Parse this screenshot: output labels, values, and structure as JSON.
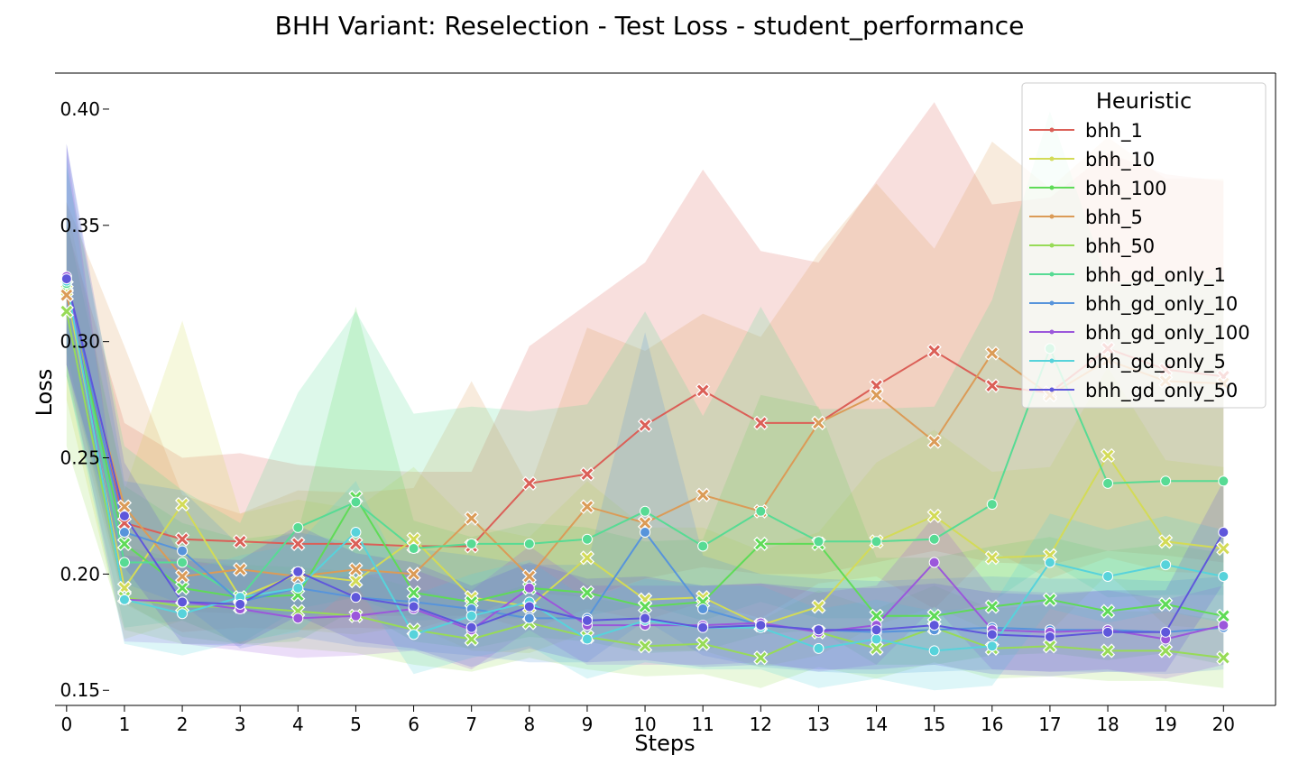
{
  "chart_data": {
    "type": "line",
    "title": "BHH Variant: Reselection - Test Loss - student_performance",
    "xlabel": "Steps",
    "ylabel": "Loss",
    "x": [
      0,
      1,
      2,
      3,
      4,
      5,
      6,
      7,
      8,
      9,
      10,
      11,
      12,
      13,
      14,
      15,
      16,
      17,
      18,
      19,
      20
    ],
    "xlim": [
      -0.2,
      20.9
    ],
    "ylim": [
      0.1435,
      0.4155
    ],
    "yticks": [
      0.15,
      0.2,
      0.25,
      0.3,
      0.35,
      0.4
    ],
    "ytick_labels": [
      "0.15",
      "0.20",
      "0.25",
      "0.30",
      "0.35",
      "0.40"
    ],
    "xtick_labels": [
      "0",
      "1",
      "2",
      "3",
      "4",
      "5",
      "6",
      "7",
      "8",
      "9",
      "10",
      "11",
      "12",
      "13",
      "14",
      "15",
      "16",
      "17",
      "18",
      "19",
      "20"
    ],
    "grid": false,
    "legend": {
      "title": "Heuristic",
      "placement": "top-right"
    },
    "series": [
      {
        "name": "bhh_1",
        "color": "#db5f57",
        "values": [
          0.32,
          0.222,
          0.215,
          0.214,
          0.213,
          0.213,
          0.212,
          0.212,
          0.239,
          0.243,
          0.264,
          0.279,
          0.265,
          0.265,
          0.281,
          0.296,
          0.281,
          0.278,
          0.297,
          0.288,
          0.285
        ],
        "upper": [
          0.35,
          0.265,
          0.25,
          0.252,
          0.247,
          0.245,
          0.244,
          0.244,
          0.298,
          0.316,
          0.334,
          0.374,
          0.339,
          0.334,
          0.369,
          0.403,
          0.359,
          0.362,
          0.381,
          0.372,
          0.369
        ],
        "lower": [
          0.29,
          0.19,
          0.184,
          0.183,
          0.182,
          0.182,
          0.182,
          0.182,
          0.192,
          0.19,
          0.198,
          0.203,
          0.2,
          0.2,
          0.205,
          0.21,
          0.205,
          0.204,
          0.21,
          0.208,
          0.205
        ]
      },
      {
        "name": "bhh_10",
        "color": "#d3db57",
        "values": [
          0.322,
          0.194,
          0.23,
          0.19,
          0.2,
          0.197,
          0.215,
          0.19,
          0.186,
          0.207,
          0.189,
          0.19,
          0.178,
          0.186,
          0.214,
          0.225,
          0.207,
          0.208,
          0.251,
          0.214,
          0.211
        ],
        "upper": [
          0.36,
          0.236,
          0.309,
          0.226,
          0.232,
          0.228,
          0.246,
          0.221,
          0.216,
          0.24,
          0.22,
          0.22,
          0.21,
          0.218,
          0.248,
          0.262,
          0.244,
          0.246,
          0.289,
          0.249,
          0.246
        ],
        "lower": [
          0.275,
          0.172,
          0.18,
          0.17,
          0.176,
          0.174,
          0.178,
          0.167,
          0.166,
          0.175,
          0.167,
          0.167,
          0.16,
          0.165,
          0.178,
          0.186,
          0.175,
          0.175,
          0.2,
          0.178,
          0.176
        ]
      },
      {
        "name": "bhh_100",
        "color": "#5fdb57",
        "values": [
          0.324,
          0.213,
          0.194,
          0.19,
          0.191,
          0.233,
          0.192,
          0.188,
          0.194,
          0.192,
          0.186,
          0.188,
          0.213,
          0.213,
          0.182,
          0.182,
          0.186,
          0.189,
          0.184,
          0.187,
          0.182
        ],
        "upper": [
          0.352,
          0.238,
          0.222,
          0.215,
          0.218,
          0.315,
          0.223,
          0.216,
          0.222,
          0.22,
          0.214,
          0.215,
          0.277,
          0.272,
          0.207,
          0.207,
          0.212,
          0.216,
          0.21,
          0.213,
          0.209
        ],
        "lower": [
          0.295,
          0.188,
          0.173,
          0.17,
          0.171,
          0.185,
          0.171,
          0.168,
          0.173,
          0.171,
          0.166,
          0.167,
          0.174,
          0.176,
          0.161,
          0.161,
          0.165,
          0.166,
          0.163,
          0.166,
          0.161
        ]
      },
      {
        "name": "bhh_5",
        "color": "#db9b57",
        "values": [
          0.32,
          0.229,
          0.199,
          0.202,
          0.199,
          0.202,
          0.2,
          0.224,
          0.199,
          0.229,
          0.222,
          0.234,
          0.227,
          0.265,
          0.277,
          0.257,
          0.295,
          0.277,
          0.292,
          0.283,
          0.282
        ],
        "upper": [
          0.36,
          0.298,
          0.234,
          0.226,
          0.236,
          0.235,
          0.237,
          0.283,
          0.237,
          0.306,
          0.296,
          0.312,
          0.302,
          0.338,
          0.368,
          0.34,
          0.386,
          0.366,
          0.388,
          0.37,
          0.37
        ],
        "lower": [
          0.285,
          0.187,
          0.175,
          0.177,
          0.176,
          0.177,
          0.176,
          0.183,
          0.176,
          0.185,
          0.18,
          0.188,
          0.181,
          0.196,
          0.199,
          0.185,
          0.21,
          0.198,
          0.207,
          0.201,
          0.2
        ]
      },
      {
        "name": "bhh_50",
        "color": "#97db57",
        "values": [
          0.313,
          0.19,
          0.186,
          0.186,
          0.184,
          0.182,
          0.176,
          0.172,
          0.179,
          0.173,
          0.169,
          0.17,
          0.164,
          0.175,
          0.168,
          0.177,
          0.168,
          0.169,
          0.167,
          0.167,
          0.164
        ],
        "upper": [
          0.325,
          0.212,
          0.206,
          0.204,
          0.203,
          0.201,
          0.194,
          0.188,
          0.196,
          0.19,
          0.186,
          0.187,
          0.18,
          0.193,
          0.185,
          0.195,
          0.185,
          0.187,
          0.184,
          0.184,
          0.18
        ],
        "lower": [
          0.255,
          0.176,
          0.17,
          0.17,
          0.168,
          0.166,
          0.161,
          0.158,
          0.164,
          0.159,
          0.156,
          0.157,
          0.151,
          0.16,
          0.155,
          0.162,
          0.155,
          0.156,
          0.154,
          0.154,
          0.151
        ]
      },
      {
        "name": "bhh_gd_only_1",
        "color": "#57db94",
        "values": [
          0.325,
          0.205,
          0.205,
          0.19,
          0.22,
          0.231,
          0.211,
          0.213,
          0.213,
          0.215,
          0.227,
          0.212,
          0.227,
          0.214,
          0.214,
          0.215,
          0.23,
          0.297,
          0.239,
          0.24,
          0.24
        ],
        "upper": [
          0.375,
          0.255,
          0.236,
          0.222,
          0.278,
          0.313,
          0.269,
          0.272,
          0.27,
          0.273,
          0.313,
          0.268,
          0.315,
          0.271,
          0.271,
          0.272,
          0.318,
          0.399,
          0.325,
          0.327,
          0.327
        ],
        "lower": [
          0.285,
          0.177,
          0.18,
          0.17,
          0.185,
          0.19,
          0.18,
          0.181,
          0.181,
          0.182,
          0.187,
          0.18,
          0.188,
          0.181,
          0.181,
          0.182,
          0.188,
          0.205,
          0.19,
          0.191,
          0.191
        ]
      },
      {
        "name": "bhh_gd_only_10",
        "color": "#5794db",
        "values": [
          0.327,
          0.218,
          0.21,
          0.188,
          0.194,
          0.19,
          0.188,
          0.185,
          0.181,
          0.181,
          0.218,
          0.185,
          0.178,
          0.176,
          0.175,
          0.176,
          0.177,
          0.176,
          0.176,
          0.175,
          0.177
        ],
        "upper": [
          0.385,
          0.24,
          0.236,
          0.212,
          0.218,
          0.213,
          0.211,
          0.208,
          0.204,
          0.204,
          0.304,
          0.208,
          0.2,
          0.198,
          0.197,
          0.198,
          0.199,
          0.198,
          0.198,
          0.197,
          0.199
        ],
        "lower": [
          0.29,
          0.196,
          0.187,
          0.168,
          0.173,
          0.169,
          0.167,
          0.165,
          0.162,
          0.162,
          0.18,
          0.165,
          0.16,
          0.158,
          0.157,
          0.158,
          0.159,
          0.158,
          0.158,
          0.157,
          0.159
        ]
      },
      {
        "name": "bhh_gd_only_100",
        "color": "#9b57db",
        "values": [
          0.328,
          0.189,
          0.188,
          0.185,
          0.181,
          0.182,
          0.185,
          0.176,
          0.194,
          0.178,
          0.178,
          0.178,
          0.179,
          0.175,
          0.178,
          0.205,
          0.176,
          0.175,
          0.176,
          0.172,
          0.178
        ],
        "upper": [
          0.385,
          0.208,
          0.206,
          0.203,
          0.198,
          0.199,
          0.202,
          0.193,
          0.212,
          0.195,
          0.195,
          0.195,
          0.196,
          0.192,
          0.195,
          0.225,
          0.193,
          0.192,
          0.193,
          0.189,
          0.195
        ],
        "lower": [
          0.29,
          0.171,
          0.17,
          0.167,
          0.164,
          0.165,
          0.167,
          0.159,
          0.176,
          0.161,
          0.161,
          0.161,
          0.162,
          0.158,
          0.161,
          0.186,
          0.159,
          0.158,
          0.159,
          0.155,
          0.161
        ]
      },
      {
        "name": "bhh_gd_only_5",
        "color": "#57d3db",
        "values": [
          0.326,
          0.189,
          0.183,
          0.19,
          0.194,
          0.218,
          0.174,
          0.182,
          0.188,
          0.172,
          0.18,
          0.177,
          0.177,
          0.168,
          0.172,
          0.167,
          0.169,
          0.205,
          0.199,
          0.204,
          0.199
        ],
        "upper": [
          0.38,
          0.207,
          0.201,
          0.208,
          0.213,
          0.24,
          0.191,
          0.2,
          0.206,
          0.189,
          0.198,
          0.195,
          0.195,
          0.185,
          0.189,
          0.184,
          0.186,
          0.226,
          0.219,
          0.225,
          0.219
        ],
        "lower": [
          0.285,
          0.17,
          0.165,
          0.171,
          0.175,
          0.196,
          0.157,
          0.164,
          0.169,
          0.155,
          0.162,
          0.159,
          0.159,
          0.151,
          0.155,
          0.15,
          0.152,
          0.185,
          0.179,
          0.184,
          0.179
        ]
      },
      {
        "name": "bhh_gd_only_50",
        "color": "#5f57db",
        "values": [
          0.327,
          0.225,
          0.188,
          0.187,
          0.201,
          0.19,
          0.186,
          0.177,
          0.186,
          0.18,
          0.181,
          0.177,
          0.178,
          0.176,
          0.176,
          0.178,
          0.174,
          0.173,
          0.175,
          0.175,
          0.218
        ],
        "upper": [
          0.385,
          0.248,
          0.207,
          0.206,
          0.221,
          0.209,
          0.205,
          0.195,
          0.205,
          0.198,
          0.199,
          0.195,
          0.196,
          0.194,
          0.194,
          0.196,
          0.192,
          0.191,
          0.193,
          0.193,
          0.24
        ],
        "lower": [
          0.29,
          0.203,
          0.17,
          0.169,
          0.182,
          0.171,
          0.168,
          0.16,
          0.168,
          0.162,
          0.163,
          0.16,
          0.161,
          0.159,
          0.159,
          0.161,
          0.157,
          0.156,
          0.158,
          0.158,
          0.196
        ]
      }
    ]
  }
}
